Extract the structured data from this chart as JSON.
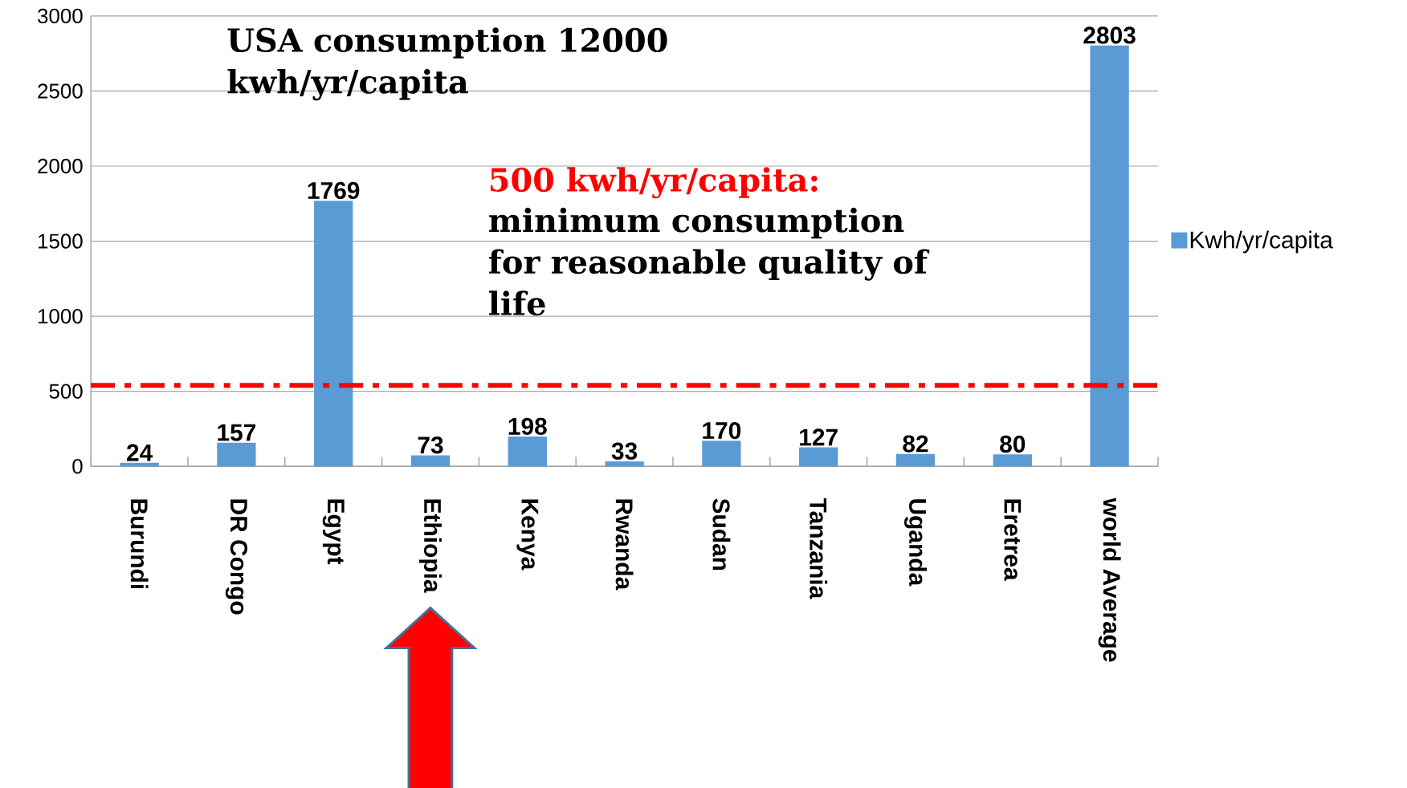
{
  "chart_data": {
    "type": "bar",
    "categories": [
      "Burundi",
      "DR Congo",
      "Egypt",
      "Ethiopia",
      "Kenya",
      "Rwanda",
      "Sudan",
      "Tanzania",
      "Uganda",
      "Eretrea",
      "world Average"
    ],
    "series": [
      {
        "name": "Kwh/yr/capita",
        "color": "#5b9bd5",
        "values": [
          24,
          157,
          1769,
          73,
          198,
          33,
          170,
          127,
          82,
          80,
          2803
        ]
      }
    ],
    "ylim": [
      0,
      3000
    ],
    "yticks": [
      0,
      500,
      1000,
      1500,
      2000,
      2500,
      3000
    ],
    "grid": "y",
    "legend": "right",
    "data_labels": true,
    "ref_lines": [
      {
        "axis": "y",
        "value": 540,
        "label": "500 kwh/yr/capita:",
        "color": "#ff0000",
        "line_style": "dashdot"
      }
    ],
    "annotations": [
      "USA consumption 12000 kwh/yr/capita",
      "minimum consumption for reasonable quality of life"
    ]
  }
}
